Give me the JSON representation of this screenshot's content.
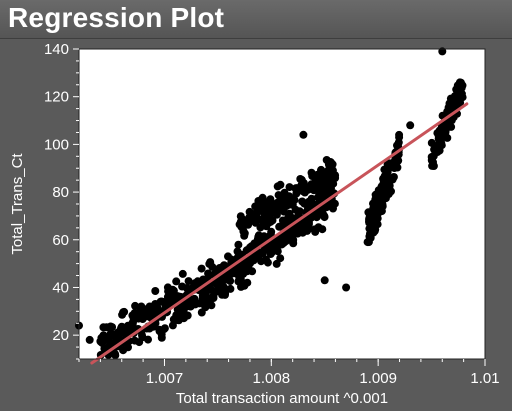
{
  "window": {
    "title": "Regression Plot"
  },
  "colors": {
    "points": "#000000",
    "fit_line": "#c8545a",
    "plot_background": "#ffffff",
    "panel_background": "#5a5a5a",
    "text": "#ffffff"
  },
  "chart_data": {
    "type": "scatter",
    "title": "Regression Plot",
    "xlabel": "Total transaction amount ^0.001",
    "ylabel": "Total_Trans_Ct",
    "xlim": [
      1.0062,
      1.01
    ],
    "ylim": [
      10,
      140
    ],
    "x_ticks": [
      1.007,
      1.008,
      1.009,
      1.01
    ],
    "x_tick_labels": [
      "1.007",
      "1.008",
      "1.009",
      "1.01"
    ],
    "y_ticks": [
      20,
      40,
      60,
      80,
      100,
      120,
      140
    ],
    "y_tick_labels": [
      "20",
      "40",
      "60",
      "80",
      "100",
      "120",
      "140"
    ],
    "grid": false,
    "legend": "none",
    "regression_line": {
      "x": [
        1.00632,
        1.00983
      ],
      "y": [
        5,
        117
      ]
    },
    "clusters": [
      {
        "x_range": [
          1.0064,
          1.0086
        ],
        "y_trend": [
          [
            1.0064,
            15
          ],
          [
            1.0075,
            42
          ],
          [
            1.0086,
            80
          ]
        ],
        "spread": 18,
        "count": 520
      },
      {
        "x_range": [
          1.0077,
          1.0086
        ],
        "y_trend": [
          [
            1.0077,
            65
          ],
          [
            1.0086,
            90
          ]
        ],
        "spread": 12,
        "count": 160
      },
      {
        "x_range": [
          1.0089,
          1.0092
        ],
        "y_trend": [
          [
            1.0089,
            62
          ],
          [
            1.0092,
            98
          ]
        ],
        "spread": 14,
        "count": 120
      },
      {
        "x_range": [
          1.0095,
          1.0098
        ],
        "y_trend": [
          [
            1.0095,
            95
          ],
          [
            1.0098,
            125
          ]
        ],
        "spread": 12,
        "count": 110
      }
    ],
    "outliers": [
      {
        "x": 1.0062,
        "y": 24
      },
      {
        "x": 1.0063,
        "y": 18
      },
      {
        "x": 1.0085,
        "y": 43
      },
      {
        "x": 1.0087,
        "y": 40
      },
      {
        "x": 1.0096,
        "y": 139
      },
      {
        "x": 1.0093,
        "y": 108
      },
      {
        "x": 1.0083,
        "y": 104
      }
    ]
  }
}
